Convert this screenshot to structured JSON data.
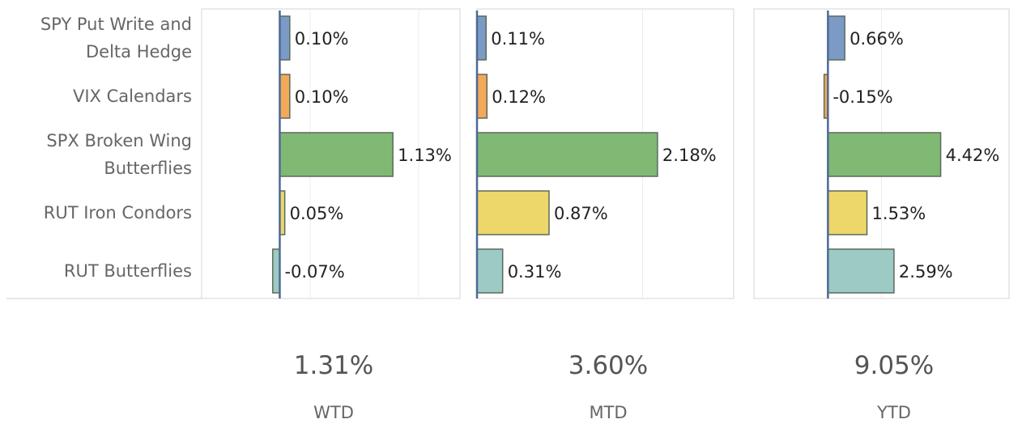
{
  "chart_data": {
    "type": "bar",
    "orientation": "horizontal",
    "categories": [
      [
        "SPY Put Write and",
        "Delta Hedge"
      ],
      [
        "VIX Calendars"
      ],
      [
        "SPX Broken Wing",
        "Butterflies"
      ],
      [
        "RUT Iron Condors"
      ],
      [
        "RUT Butterflies"
      ]
    ],
    "colors": [
      "#7b9bc6",
      "#f2a95a",
      "#7fb974",
      "#edd76a",
      "#9ccac5"
    ],
    "border_color": "#5c6a5c",
    "zero_line_color": "#4e6996",
    "grid": true,
    "panels": [
      {
        "name": "WTD",
        "total": "1.31%",
        "values": [
          0.1,
          0.1,
          1.13,
          0.05,
          -0.07
        ],
        "labels": [
          "0.10%",
          "0.10%",
          "1.13%",
          "0.05%",
          "-0.07%"
        ],
        "xlim": [
          -0.78,
          1.8
        ]
      },
      {
        "name": "MTD",
        "total": "3.60%",
        "values": [
          0.11,
          0.12,
          2.18,
          0.87,
          0.31
        ],
        "labels": [
          "0.11%",
          "0.12%",
          "2.18%",
          "0.87%",
          "0.31%"
        ],
        "xlim": [
          0,
          3.1
        ]
      },
      {
        "name": "YTD",
        "total": "9.05%",
        "values": [
          0.66,
          -0.15,
          4.42,
          1.53,
          2.59
        ],
        "labels": [
          "0.66%",
          "-0.15%",
          "4.42%",
          "1.53%",
          "2.59%"
        ],
        "xlim": [
          -2.9,
          7.1
        ]
      }
    ]
  }
}
